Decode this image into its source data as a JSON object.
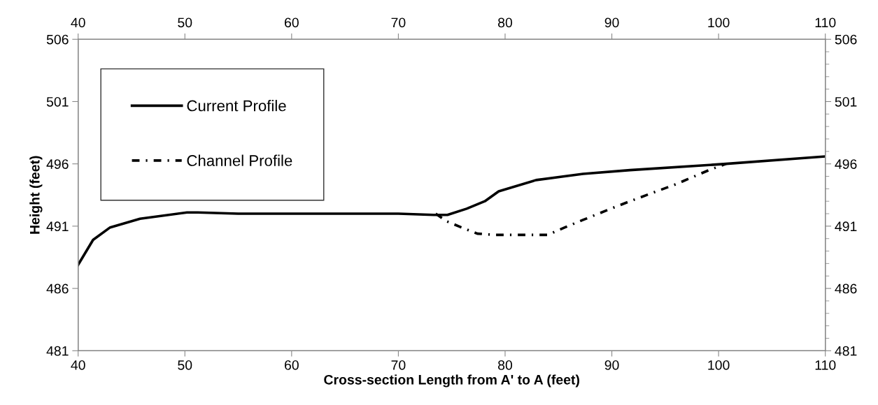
{
  "chart_data": {
    "type": "line",
    "xlabel": "Cross-section Length from A' to A (feet)",
    "ylabel": "Height (feet)",
    "xlim": [
      40,
      110
    ],
    "xticks": [
      40,
      50,
      60,
      70,
      80,
      90,
      100,
      110
    ],
    "x2lim": [
      40,
      110
    ],
    "x2ticks": [
      40,
      50,
      60,
      70,
      80,
      90,
      100,
      110
    ],
    "ylim": [
      481,
      506
    ],
    "yticks": [
      481,
      486,
      491,
      496,
      501,
      506
    ],
    "y2lim": [
      481,
      506
    ],
    "y2ticks": [
      481,
      486,
      491,
      496,
      501,
      506
    ],
    "legend": "top left",
    "grid": false,
    "marker": "none",
    "series": [
      {
        "name": "Current Profile",
        "color": "#000000",
        "line_style": "solid",
        "x": [
          40,
          41.4,
          43.0,
          45.8,
          50.2,
          51.2,
          55,
          60,
          65,
          70,
          73.3,
          74.6,
          76.4,
          78.1,
          79.4,
          82.9,
          87.3,
          91.7,
          100.7,
          110
        ],
        "values": [
          487.9,
          489.9,
          490.9,
          491.6,
          492.1,
          492.1,
          492.0,
          492.0,
          492.0,
          492.0,
          491.9,
          491.9,
          492.4,
          493.0,
          493.8,
          494.7,
          495.2,
          495.5,
          496.0,
          496.6
        ]
      },
      {
        "name": "Channel Profile",
        "color": "#000000",
        "line_style": "dashdot",
        "x": [
          73.5,
          74.5,
          75.9,
          77.4,
          79.0,
          84.0,
          85.6,
          87.3,
          89.9,
          91.7,
          96.1,
          99.1,
          100.7
        ],
        "values": [
          492.0,
          491.4,
          490.9,
          490.4,
          490.3,
          490.3,
          490.9,
          491.5,
          492.4,
          493.0,
          494.4,
          495.5,
          496.0
        ]
      }
    ]
  }
}
